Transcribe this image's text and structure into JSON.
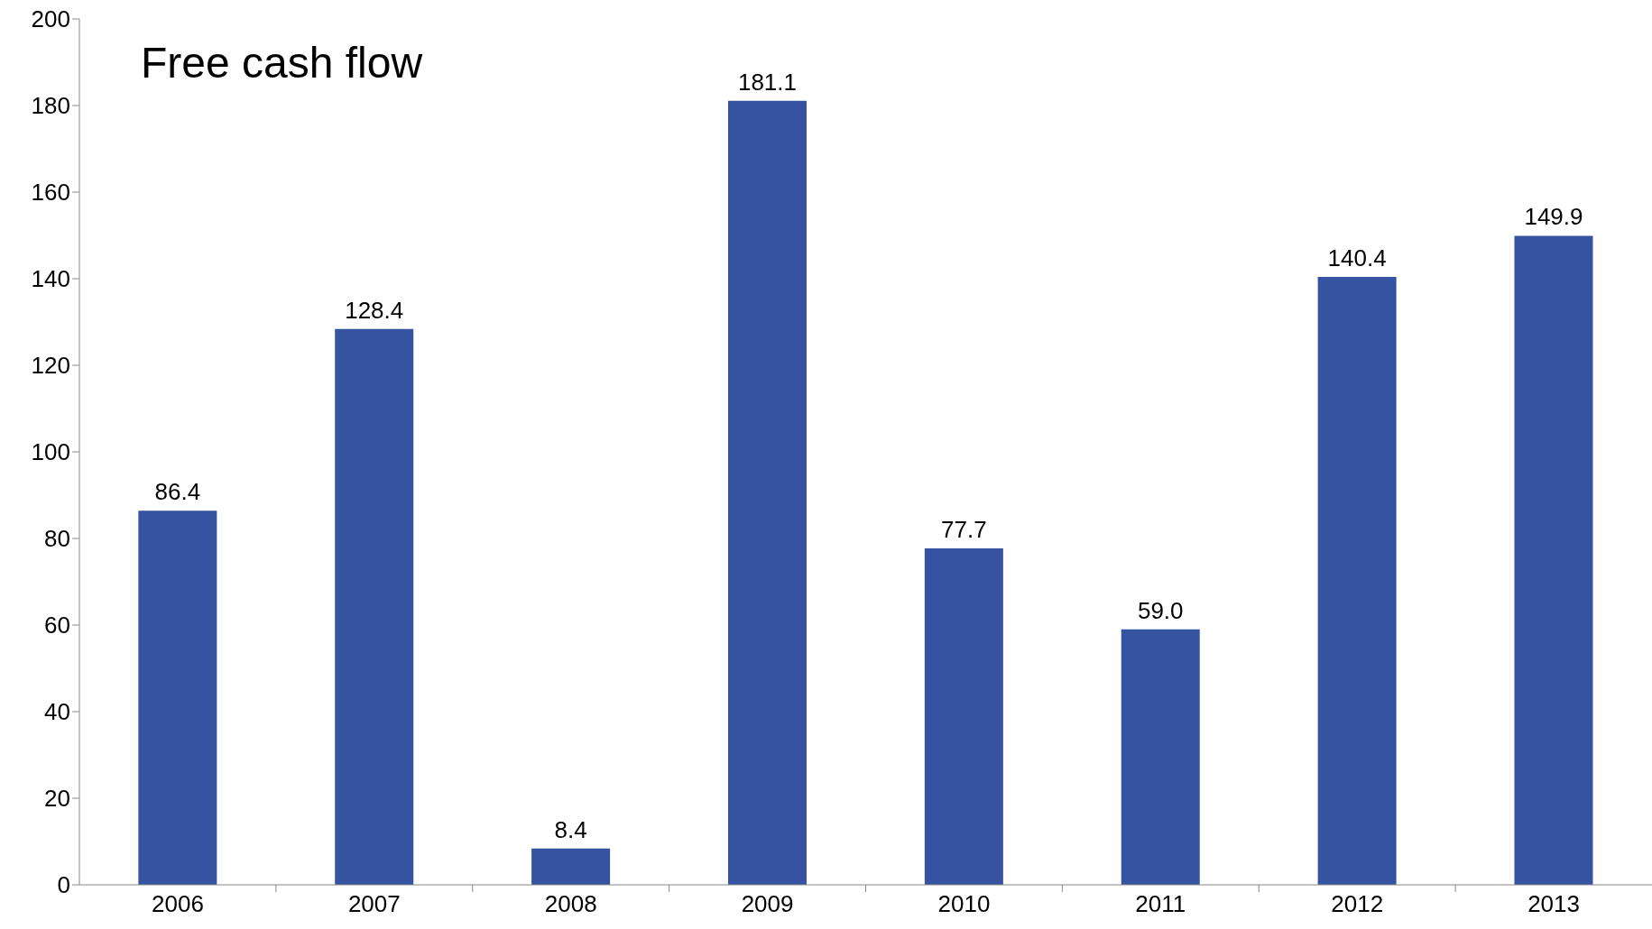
{
  "chart_data": {
    "type": "bar",
    "title": "Free cash flow",
    "categories": [
      "2006",
      "2007",
      "2008",
      "2009",
      "2010",
      "2011",
      "2012",
      "2013"
    ],
    "values": [
      86.4,
      128.4,
      8.4,
      181.1,
      77.7,
      59.0,
      140.4,
      149.9
    ],
    "value_labels": [
      "86.4",
      "128.4",
      "8.4",
      "181.1",
      "77.7",
      "59.0",
      "140.4",
      "149.9"
    ],
    "color": "#3553a0",
    "ylim": [
      0,
      200
    ],
    "yticks": [
      0,
      20,
      40,
      60,
      80,
      100,
      120,
      140,
      160,
      180,
      200
    ],
    "grid": false,
    "legend": false
  }
}
